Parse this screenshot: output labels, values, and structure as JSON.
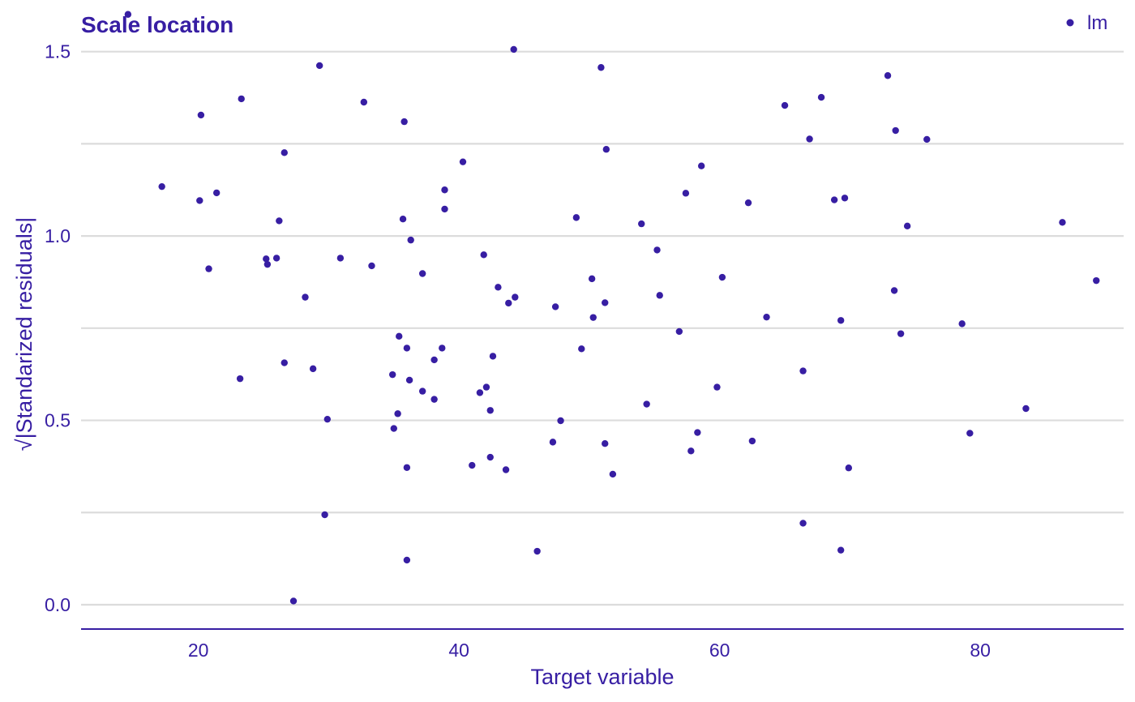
{
  "colors": {
    "accent": "#371ea3",
    "grid": "#dcdcdc",
    "background": "#ffffff"
  },
  "chart_data": {
    "type": "scatter",
    "title": "Scale location",
    "xlabel": "Target variable",
    "ylabel": "√|Standarized residuals|",
    "xlim": [
      11,
      91
    ],
    "ylim": [
      -0.066,
      1.64
    ],
    "xticks": [
      20,
      40,
      60,
      80
    ],
    "yticks": [
      0.0,
      0.5,
      1.0,
      1.5
    ],
    "ytick_labels": [
      "0.0",
      "0.5",
      "1.0",
      "1.5"
    ],
    "minor_y_grid": [
      0.25,
      0.75,
      1.25
    ],
    "grid": "horizontal",
    "legend": {
      "position": "top-right",
      "entries": [
        "lm"
      ]
    },
    "series": [
      {
        "name": "lm",
        "points": [
          [
            14.6,
            1.601
          ],
          [
            17.2,
            1.134
          ],
          [
            20.1,
            1.096
          ],
          [
            20.2,
            1.328
          ],
          [
            20.8,
            0.911
          ],
          [
            21.4,
            1.117
          ],
          [
            23.2,
            0.613
          ],
          [
            23.3,
            1.372
          ],
          [
            25.2,
            0.938
          ],
          [
            25.3,
            0.923
          ],
          [
            26.0,
            0.94
          ],
          [
            26.2,
            1.041
          ],
          [
            26.6,
            1.226
          ],
          [
            26.6,
            0.656
          ],
          [
            27.3,
            0.01
          ],
          [
            28.2,
            0.834
          ],
          [
            28.8,
            0.64
          ],
          [
            29.3,
            1.462
          ],
          [
            29.7,
            0.244
          ],
          [
            29.9,
            0.503
          ],
          [
            30.9,
            0.94
          ],
          [
            32.7,
            1.363
          ],
          [
            33.3,
            0.919
          ],
          [
            34.9,
            0.624
          ],
          [
            35.0,
            0.478
          ],
          [
            35.3,
            0.518
          ],
          [
            35.4,
            0.728
          ],
          [
            35.7,
            1.046
          ],
          [
            35.8,
            1.31
          ],
          [
            36.0,
            0.696
          ],
          [
            36.0,
            0.372
          ],
          [
            36.0,
            0.121
          ],
          [
            36.2,
            0.609
          ],
          [
            36.3,
            0.989
          ],
          [
            37.2,
            0.898
          ],
          [
            37.2,
            0.579
          ],
          [
            38.1,
            0.664
          ],
          [
            38.1,
            0.557
          ],
          [
            38.7,
            0.696
          ],
          [
            38.9,
            1.125
          ],
          [
            38.9,
            1.073
          ],
          [
            40.3,
            1.201
          ],
          [
            41.0,
            0.378
          ],
          [
            41.6,
            0.575
          ],
          [
            41.9,
            0.949
          ],
          [
            42.1,
            0.59
          ],
          [
            42.4,
            0.4
          ],
          [
            42.4,
            0.527
          ],
          [
            42.6,
            0.674
          ],
          [
            43.0,
            0.861
          ],
          [
            43.6,
            0.366
          ],
          [
            43.8,
            0.818
          ],
          [
            44.2,
            1.506
          ],
          [
            44.3,
            0.834
          ],
          [
            46.0,
            0.145
          ],
          [
            47.2,
            0.441
          ],
          [
            47.4,
            0.808
          ],
          [
            47.8,
            0.499
          ],
          [
            49.0,
            1.05
          ],
          [
            49.4,
            0.694
          ],
          [
            50.2,
            0.884
          ],
          [
            50.3,
            0.779
          ],
          [
            50.9,
            1.457
          ],
          [
            51.2,
            0.819
          ],
          [
            51.2,
            0.437
          ],
          [
            51.3,
            1.235
          ],
          [
            51.8,
            0.354
          ],
          [
            54.0,
            1.033
          ],
          [
            54.4,
            0.544
          ],
          [
            55.2,
            0.962
          ],
          [
            55.4,
            0.839
          ],
          [
            56.9,
            0.741
          ],
          [
            57.4,
            1.116
          ],
          [
            57.8,
            0.417
          ],
          [
            58.3,
            0.467
          ],
          [
            58.6,
            1.19
          ],
          [
            59.8,
            0.59
          ],
          [
            60.2,
            0.888
          ],
          [
            62.2,
            1.09
          ],
          [
            62.5,
            0.444
          ],
          [
            63.6,
            0.78
          ],
          [
            65.0,
            1.354
          ],
          [
            66.4,
            0.634
          ],
          [
            66.4,
            0.221
          ],
          [
            66.9,
            1.263
          ],
          [
            67.8,
            1.376
          ],
          [
            68.8,
            1.098
          ],
          [
            69.3,
            0.771
          ],
          [
            69.3,
            0.148
          ],
          [
            69.6,
            1.103
          ],
          [
            69.9,
            0.371
          ],
          [
            72.9,
            1.435
          ],
          [
            73.4,
            0.852
          ],
          [
            73.5,
            1.286
          ],
          [
            73.9,
            0.735
          ],
          [
            74.4,
            1.027
          ],
          [
            75.9,
            1.262
          ],
          [
            78.6,
            0.762
          ],
          [
            79.2,
            0.465
          ],
          [
            83.5,
            0.532
          ],
          [
            86.3,
            1.037
          ],
          [
            88.9,
            0.879
          ]
        ]
      }
    ]
  }
}
